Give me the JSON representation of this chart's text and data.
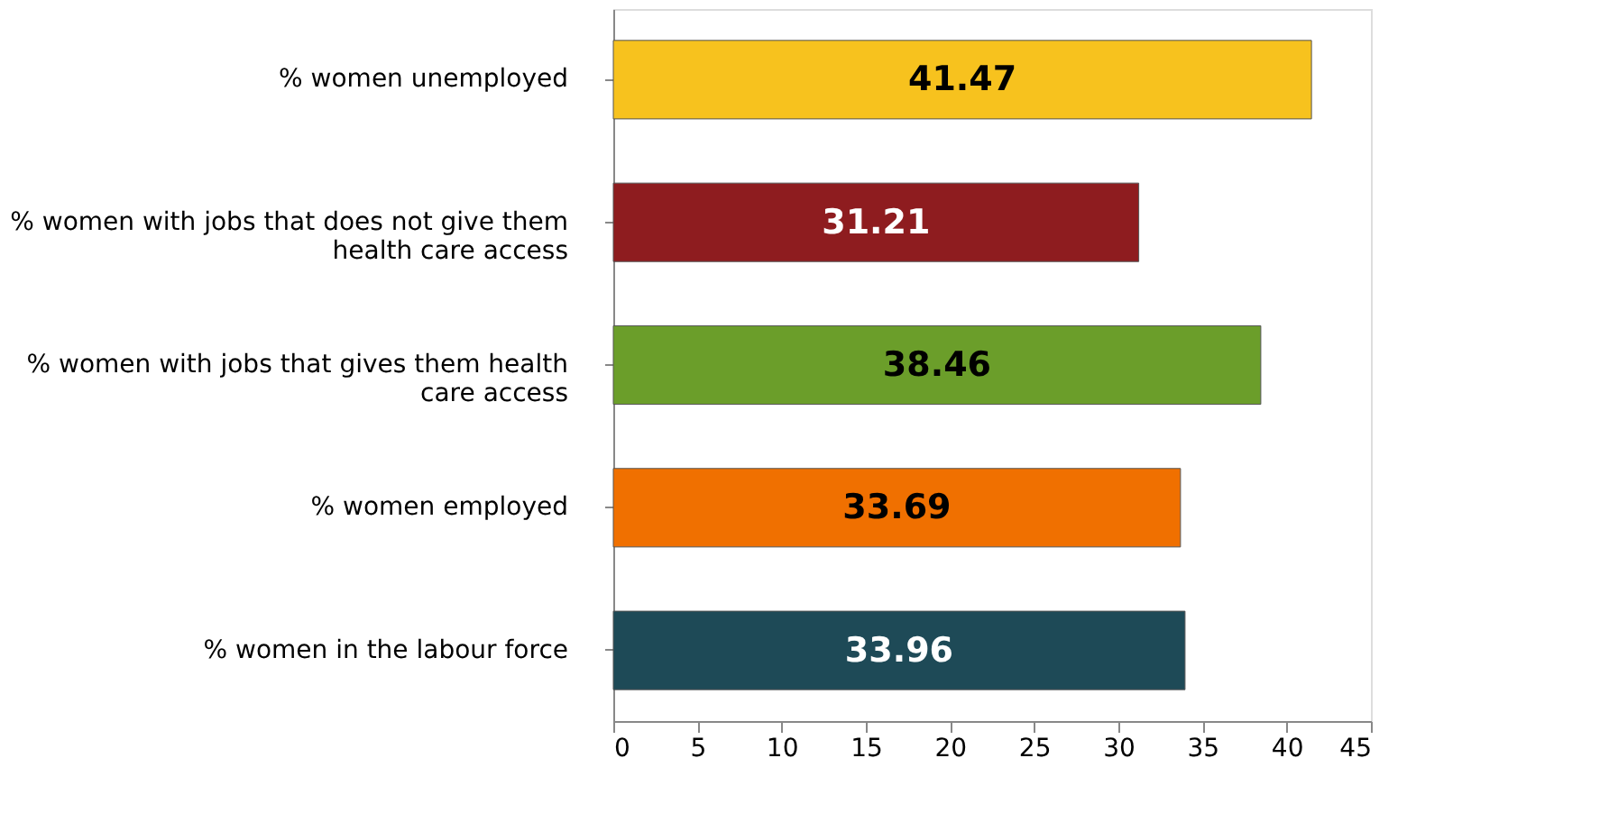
{
  "chart_data": {
    "type": "bar",
    "orientation": "horizontal",
    "categories": [
      "% women unemployed",
      "% women with jobs that does not give them health care access",
      "% women with jobs that gives them health care access",
      "% women employed",
      "% women in the labour force"
    ],
    "values": [
      41.47,
      31.21,
      38.46,
      33.69,
      33.96
    ],
    "colors": [
      "#f7c21e",
      "#8e1c1f",
      "#6b9e2a",
      "#f07000",
      "#1e4a57"
    ],
    "xlim": [
      0,
      45
    ],
    "xticks": [
      0,
      5,
      10,
      15,
      20,
      25,
      30,
      35,
      40,
      45
    ],
    "data_labels": true,
    "grid": false
  }
}
